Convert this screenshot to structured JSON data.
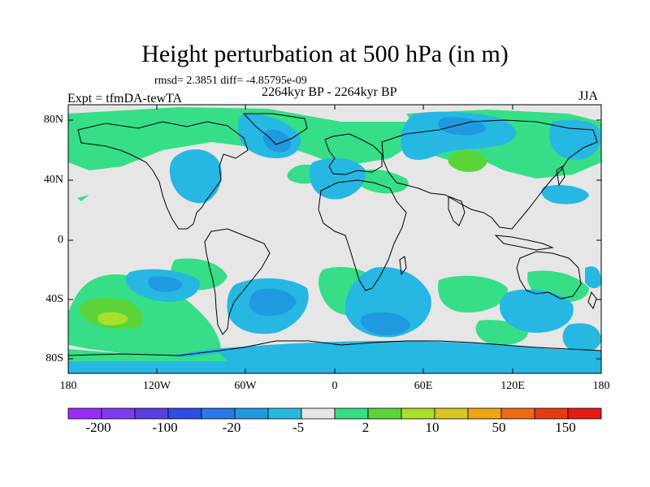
{
  "title": "Height perturbation at 500 hPa (in m)",
  "stats_line": "rmsd= 2.3851 diff= -4.85795e-09",
  "time_line": "2264kyr BP - 2264kyr BP",
  "experiment_line": "Expt = tfmDA-tewTA",
  "season": "JJA",
  "lat_ticks": [
    "80N",
    "40N",
    "0",
    "40S",
    "80S"
  ],
  "lon_ticks": [
    "180",
    "120W",
    "60W",
    "0",
    "60E",
    "120E",
    "180"
  ],
  "colorbar": {
    "colors": [
      "#9a2bff",
      "#7f3cf0",
      "#5a3fe0",
      "#2d4de6",
      "#2a79e8",
      "#1f9ae0",
      "#27b7e3",
      "#e6e6e6",
      "#36de87",
      "#5bd43a",
      "#a8e02a",
      "#d9c61e",
      "#f0a515",
      "#f06a12",
      "#e83a10",
      "#e41b10"
    ],
    "labels": [
      "-200",
      "-100",
      "-20",
      "-5",
      "2",
      "10",
      "50",
      "150"
    ]
  },
  "colors": {
    "land_fill": "#e6e6e6",
    "coastline": "#000000"
  }
}
